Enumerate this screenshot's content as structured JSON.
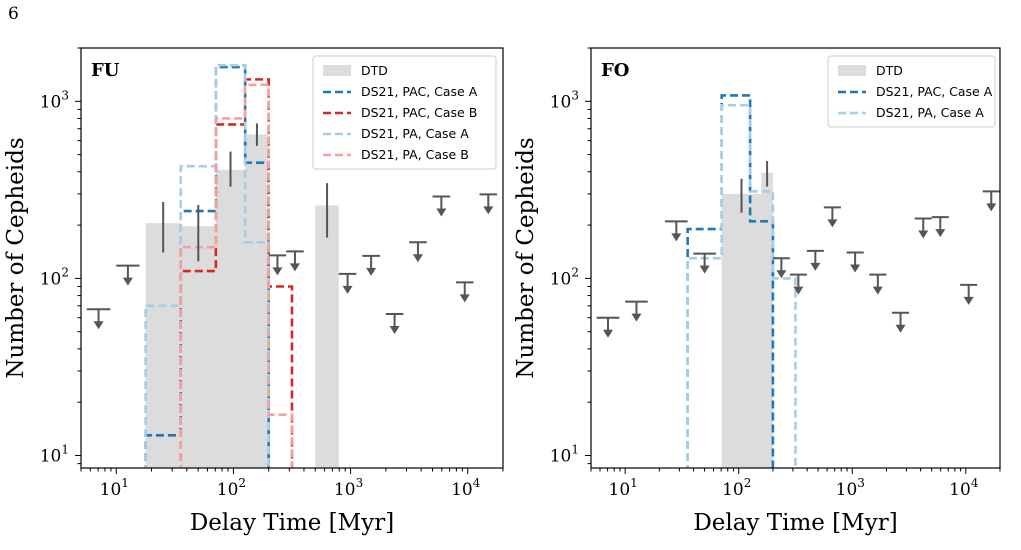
{
  "page": {
    "number": "6"
  },
  "colors": {
    "dtd": "#dcdcdc",
    "limits": "#555555",
    "pac_a": "#1f77b4",
    "pac_b": "#d62728",
    "pa_a": "#a6cee3",
    "pa_b": "#f4a0a0"
  },
  "chart_data": [
    {
      "type": "histogram",
      "title": "FU",
      "xlabel": "Delay Time [Myr]",
      "ylabel": "Number of Cepheids",
      "xscale": "log",
      "yscale": "log",
      "xlim": [
        5,
        20000
      ],
      "ylim": [
        8.5,
        2000
      ],
      "x_ticks": [
        {
          "v": 10,
          "b": "10",
          "e": "1"
        },
        {
          "v": 100,
          "b": "10",
          "e": "2"
        },
        {
          "v": 1000,
          "b": "10",
          "e": "3"
        },
        {
          "v": 10000,
          "b": "10",
          "e": "4"
        }
      ],
      "y_ticks": [
        {
          "v": 10,
          "b": "10",
          "e": "1"
        },
        {
          "v": 100,
          "b": "10",
          "e": "2"
        },
        {
          "v": 1000,
          "b": "10",
          "e": "3"
        }
      ],
      "legend_position": "top-right",
      "dtd": {
        "name": "DTD",
        "bins": [
          {
            "x0": 17.8,
            "x1": 35.5,
            "y": 205,
            "err": [
              140,
              270
            ]
          },
          {
            "x0": 35.5,
            "x1": 70.8,
            "y": 197,
            "err": [
              125,
              260
            ]
          },
          {
            "x0": 70.8,
            "x1": 126,
            "y": 410,
            "err": [
              330,
              520
            ]
          },
          {
            "x0": 126,
            "x1": 200,
            "y": 650,
            "err": [
              560,
              750
            ]
          },
          {
            "x0": 500,
            "x1": 794,
            "y": 258,
            "err": [
              170,
              345
            ]
          }
        ]
      },
      "upper_limits": [
        {
          "x0": 5.6,
          "x1": 8.9,
          "y": 67
        },
        {
          "x0": 10,
          "x1": 15.8,
          "y": 118
        },
        {
          "x0": 200,
          "x1": 282,
          "y": 135
        },
        {
          "x0": 282,
          "x1": 398,
          "y": 142
        },
        {
          "x0": 794,
          "x1": 1120,
          "y": 106
        },
        {
          "x0": 1260,
          "x1": 1780,
          "y": 134
        },
        {
          "x0": 2000,
          "x1": 2820,
          "y": 63
        },
        {
          "x0": 3160,
          "x1": 4470,
          "y": 160
        },
        {
          "x0": 5010,
          "x1": 7080,
          "y": 290
        },
        {
          "x0": 7940,
          "x1": 11200,
          "y": 95
        },
        {
          "x0": 12600,
          "x1": 17800,
          "y": 298
        }
      ],
      "series": [
        {
          "name": "DS21, PAC, Case A",
          "color_key": "pac_a",
          "edges": [
            17.8,
            35.5,
            70.8,
            126,
            200
          ],
          "values": [
            13,
            240,
            1560,
            450
          ]
        },
        {
          "name": "DS21, PAC, Case B",
          "color_key": "pac_b",
          "edges": [
            35.5,
            70.8,
            126,
            200,
            316
          ],
          "values": [
            110,
            740,
            1330,
            90
          ]
        },
        {
          "name": "DS21, PA, Case A",
          "color_key": "pa_a",
          "edges": [
            17.8,
            35.5,
            70.8,
            126,
            200
          ],
          "values": [
            70,
            430,
            1600,
            160
          ]
        },
        {
          "name": "DS21, PA, Case B",
          "color_key": "pa_b",
          "edges": [
            35.5,
            70.8,
            126,
            200,
            316
          ],
          "values": [
            150,
            800,
            1240,
            17
          ]
        }
      ]
    },
    {
      "type": "histogram",
      "title": "FO",
      "xlabel": "Delay Time [Myr]",
      "ylabel": "Number of Cepheids",
      "xscale": "log",
      "yscale": "log",
      "xlim": [
        5,
        20000
      ],
      "ylim": [
        8.5,
        2000
      ],
      "x_ticks": [
        {
          "v": 10,
          "b": "10",
          "e": "1"
        },
        {
          "v": 100,
          "b": "10",
          "e": "2"
        },
        {
          "v": 1000,
          "b": "10",
          "e": "3"
        },
        {
          "v": 10000,
          "b": "10",
          "e": "4"
        }
      ],
      "y_ticks": [
        {
          "v": 10,
          "b": "10",
          "e": "1"
        },
        {
          "v": 100,
          "b": "10",
          "e": "2"
        },
        {
          "v": 1000,
          "b": "10",
          "e": "3"
        }
      ],
      "legend_position": "top-right",
      "dtd": {
        "name": "DTD",
        "bins": [
          {
            "x0": 70.8,
            "x1": 158,
            "y": 300,
            "err": [
              235,
              365
            ]
          },
          {
            "x0": 158,
            "x1": 200,
            "y": 395,
            "err": [
              330,
              460
            ]
          }
        ]
      },
      "upper_limits": [
        {
          "x0": 5.6,
          "x1": 8.9,
          "y": 60
        },
        {
          "x0": 10,
          "x1": 15.8,
          "y": 74
        },
        {
          "x0": 22.4,
          "x1": 35.5,
          "y": 210
        },
        {
          "x0": 39.8,
          "x1": 63,
          "y": 138
        },
        {
          "x0": 200,
          "x1": 282,
          "y": 130
        },
        {
          "x0": 282,
          "x1": 398,
          "y": 105
        },
        {
          "x0": 398,
          "x1": 562,
          "y": 143
        },
        {
          "x0": 562,
          "x1": 794,
          "y": 252
        },
        {
          "x0": 891,
          "x1": 1260,
          "y": 140
        },
        {
          "x0": 1410,
          "x1": 2000,
          "y": 105
        },
        {
          "x0": 2240,
          "x1": 3160,
          "y": 64
        },
        {
          "x0": 3550,
          "x1": 5010,
          "y": 218
        },
        {
          "x0": 5010,
          "x1": 7080,
          "y": 222
        },
        {
          "x0": 8910,
          "x1": 12600,
          "y": 92
        },
        {
          "x0": 14100,
          "x1": 19900,
          "y": 310
        }
      ],
      "series": [
        {
          "name": "DS21, PAC, Case A",
          "color_key": "pac_a",
          "edges": [
            35.5,
            70.8,
            126,
            200
          ],
          "values": [
            190,
            1080,
            210
          ]
        },
        {
          "name": "DS21, PA, Case A",
          "color_key": "pa_a",
          "edges": [
            35.5,
            70.8,
            126,
            200,
            316
          ],
          "values": [
            130,
            950,
            310,
            100
          ]
        }
      ]
    }
  ]
}
